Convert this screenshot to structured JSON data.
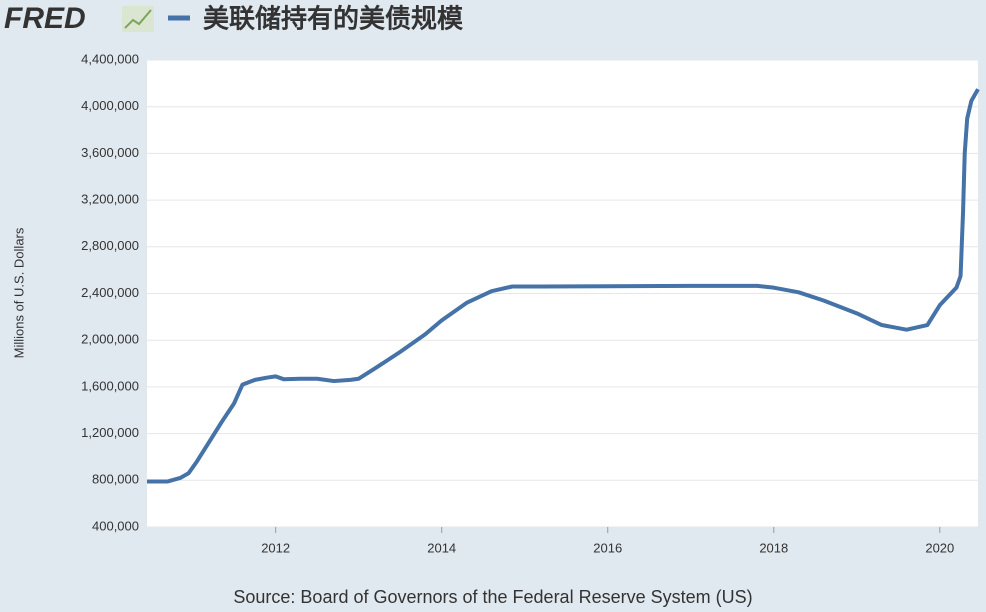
{
  "logo": "FRED",
  "chart_data": {
    "type": "line",
    "series": [
      {
        "name": "美联储持有的美债规模",
        "color": "#4572a7",
        "x": [
          2010.45,
          2010.7,
          2010.85,
          2010.95,
          2011.05,
          2011.2,
          2011.35,
          2011.5,
          2011.6,
          2011.75,
          2011.9,
          2012.0,
          2012.1,
          2012.3,
          2012.5,
          2012.7,
          2012.9,
          2013.0,
          2013.2,
          2013.5,
          2013.8,
          2014.0,
          2014.3,
          2014.6,
          2014.85,
          2015.2,
          2016.0,
          2017.0,
          2017.8,
          2018.0,
          2018.3,
          2018.6,
          2019.0,
          2019.3,
          2019.6,
          2019.85,
          2020.0,
          2020.2,
          2020.25,
          2020.28,
          2020.3,
          2020.33,
          2020.38,
          2020.46
        ],
        "values": [
          790000,
          790000,
          820000,
          860000,
          960000,
          1130000,
          1300000,
          1460000,
          1620000,
          1660000,
          1680000,
          1690000,
          1665000,
          1670000,
          1670000,
          1650000,
          1660000,
          1670000,
          1760000,
          1900000,
          2050000,
          2170000,
          2320000,
          2420000,
          2460000,
          2460000,
          2462000,
          2465000,
          2465000,
          2450000,
          2410000,
          2340000,
          2230000,
          2130000,
          2090000,
          2130000,
          2300000,
          2450000,
          2550000,
          3100000,
          3600000,
          3900000,
          4050000,
          4150000
        ]
      }
    ],
    "ylabel": "Millions of U.S. Dollars",
    "xlim": [
      2010.45,
      2020.46
    ],
    "xticks": [
      2012,
      2014,
      2016,
      2018,
      2020
    ],
    "ylim": [
      400000,
      4400000
    ],
    "yticks": [
      {
        "value": 400000,
        "label": "400,000"
      },
      {
        "value": 800000,
        "label": "800,000"
      },
      {
        "value": 1200000,
        "label": "1,200,000"
      },
      {
        "value": 1600000,
        "label": "1,600,000"
      },
      {
        "value": 2000000,
        "label": "2,000,000"
      },
      {
        "value": 2400000,
        "label": "2,400,000"
      },
      {
        "value": 2800000,
        "label": "2,800,000"
      },
      {
        "value": 3200000,
        "label": "3,200,000"
      },
      {
        "value": 3600000,
        "label": "3,600,000"
      },
      {
        "value": 4000000,
        "label": "4,000,000"
      },
      {
        "value": 4400000,
        "label": "4,400,000"
      }
    ],
    "grid": true,
    "source": "Source: Board of Governors of the Federal Reserve System (US)"
  }
}
